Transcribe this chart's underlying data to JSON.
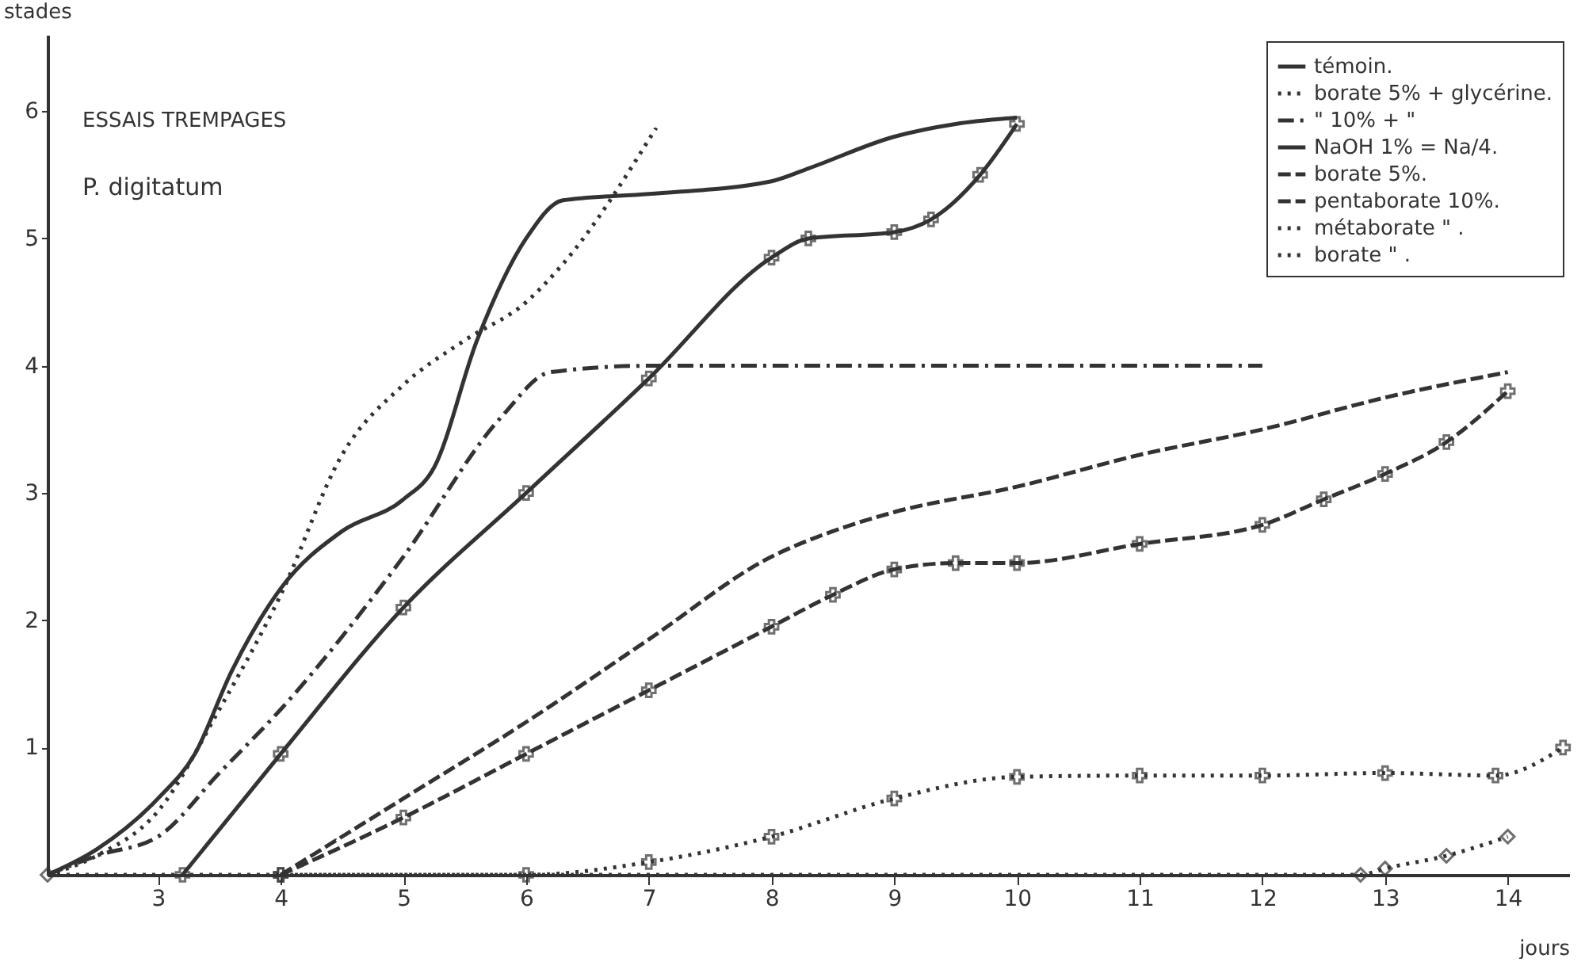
{
  "chart_data": {
    "type": "line",
    "title": "ESSAIS TREMPAGES",
    "subtitle": "P. digitatum",
    "xlabel": "jours",
    "ylabel": "stades",
    "xlim": [
      2.1,
      14.5
    ],
    "xticks": [
      3,
      4,
      5,
      6,
      7,
      8,
      9,
      10,
      11,
      12,
      13,
      14
    ],
    "ylim": [
      0,
      6.6
    ],
    "yticks": [
      1,
      2,
      3,
      4,
      5,
      6
    ],
    "grid": false,
    "legend": "top right",
    "series": [
      {
        "name": "témoin.",
        "color": "#333333",
        "line_style": "solid",
        "x": [
          2.1,
          2.5,
          3,
          3.3,
          3.6,
          4,
          4.5,
          5,
          5.25,
          5.6,
          6,
          6.3,
          7,
          8,
          8.3,
          9,
          9.5,
          10
        ],
        "values": [
          0,
          0.2,
          0.6,
          0.95,
          1.6,
          2.25,
          2.7,
          2.95,
          3.2,
          4.2,
          5.0,
          5.3,
          5.35,
          5.45,
          5.55,
          5.8,
          5.9,
          5.95
        ]
      },
      {
        "name": "borate 5% + glycérine.",
        "color": "#333333",
        "line_style": "dotted",
        "x": [
          2.1,
          2.5,
          3,
          3.5,
          4,
          4.5,
          5,
          5.5,
          6,
          6.3,
          7.06
        ],
        "values": [
          0,
          0.15,
          0.5,
          1.3,
          2.2,
          3.3,
          3.85,
          4.2,
          4.5,
          4.8,
          5.87
        ]
      },
      {
        "name": "\"   10% +        \"",
        "color": "#333333",
        "line_style": "dashdot",
        "x": [
          2.1,
          2.5,
          3,
          3.5,
          4,
          5,
          5.8,
          6.2,
          7,
          12
        ],
        "values": [
          0,
          0.15,
          0.3,
          0.8,
          1.3,
          2.5,
          3.6,
          3.95,
          4.0,
          4.0
        ]
      },
      {
        "name": "NaOH 1% = Na/4.",
        "color": "#333333",
        "line_style": "solid",
        "marker": "cross",
        "x": [
          3.2,
          4,
          5,
          6,
          7,
          8,
          8.3,
          9,
          9.3,
          9.7,
          10
        ],
        "values": [
          0,
          0.95,
          2.1,
          3.0,
          3.9,
          4.85,
          5.0,
          5.05,
          5.15,
          5.5,
          5.9
        ]
      },
      {
        "name": "borate 5%.",
        "color": "#333333",
        "line_style": "dashed",
        "x": [
          4,
          5,
          6,
          7,
          8,
          8.5,
          9,
          10,
          11,
          12,
          13,
          14
        ],
        "values": [
          0,
          0.6,
          1.2,
          1.85,
          2.5,
          2.7,
          2.85,
          3.05,
          3.3,
          3.5,
          3.75,
          3.95
        ]
      },
      {
        "name": "pentaborate 10%.",
        "color": "#333333",
        "line_style": "dashed",
        "marker": "cross",
        "x": [
          4,
          5,
          6,
          7,
          8,
          8.5,
          9,
          9.5,
          10,
          11,
          12,
          12.5,
          13,
          13.5,
          14
        ],
        "values": [
          0,
          0.45,
          0.95,
          1.45,
          1.95,
          2.2,
          2.4,
          2.45,
          2.45,
          2.6,
          2.75,
          2.95,
          3.15,
          3.4,
          3.8
        ]
      },
      {
        "name": "métaborate        \" .",
        "color": "#333333",
        "line_style": "dotted",
        "marker": "cross",
        "x": [
          4,
          6,
          7,
          8,
          9,
          10,
          11,
          12,
          13,
          13.9,
          14.45
        ],
        "values": [
          0,
          0,
          0.1,
          0.3,
          0.6,
          0.77,
          0.78,
          0.78,
          0.8,
          0.78,
          1.0
        ]
      },
      {
        "name": "borate              \" .",
        "color": "#333333",
        "line_style": "dotted",
        "marker": "diamond",
        "x": [
          2.1,
          12.8,
          13,
          13.5,
          14
        ],
        "values": [
          0,
          0,
          0.05,
          0.15,
          0.3
        ]
      }
    ]
  }
}
